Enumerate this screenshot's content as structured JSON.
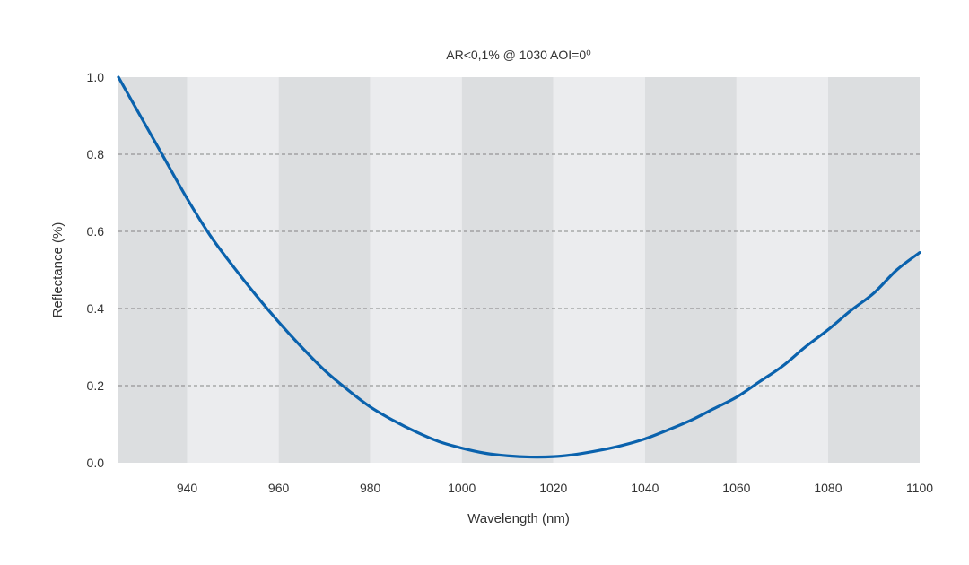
{
  "chart_data": {
    "type": "line",
    "title": "AR<0,1% @ 1030 AOI=0⁰",
    "xlabel": "Wavelength (nm)",
    "ylabel": "Reflectance (%)",
    "xlim": [
      925,
      1100
    ],
    "ylim": [
      0,
      1.0
    ],
    "x_ticks": [
      940,
      960,
      980,
      1000,
      1020,
      1040,
      1060,
      1080,
      1100
    ],
    "x_tick_labels": [
      "940",
      "960",
      "980",
      "1000",
      "1020",
      "1040",
      "1060",
      "1080",
      "1100"
    ],
    "y_ticks": [
      0,
      0.2,
      0.4,
      0.6,
      0.8,
      1.0
    ],
    "y_tick_labels": [
      "0.0",
      "0.2",
      "0.4",
      "0.6",
      "0.8",
      "1.0"
    ],
    "grid": "horizontal-dashed",
    "background_bands": [
      {
        "from": 925,
        "to": 940,
        "shade": "dark"
      },
      {
        "from": 940,
        "to": 960,
        "shade": "light"
      },
      {
        "from": 960,
        "to": 980,
        "shade": "dark"
      },
      {
        "from": 980,
        "to": 1000,
        "shade": "light"
      },
      {
        "from": 1000,
        "to": 1020,
        "shade": "dark"
      },
      {
        "from": 1020,
        "to": 1040,
        "shade": "light"
      },
      {
        "from": 1040,
        "to": 1060,
        "shade": "dark"
      },
      {
        "from": 1060,
        "to": 1080,
        "shade": "light"
      },
      {
        "from": 1080,
        "to": 1100,
        "shade": "dark"
      }
    ],
    "colors": {
      "line": "#0a62ad",
      "band_dark": "#dcdee0",
      "band_light": "#ebecee",
      "grid": "#666666"
    },
    "series": [
      {
        "x": [
          925,
          930,
          935,
          940,
          945,
          950,
          955,
          960,
          965,
          970,
          975,
          980,
          985,
          990,
          995,
          1000,
          1005,
          1010,
          1015,
          1020,
          1025,
          1030,
          1035,
          1040,
          1045,
          1050,
          1055,
          1060,
          1065,
          1070,
          1075,
          1080,
          1085,
          1090,
          1095,
          1100
        ],
        "y": [
          1.0,
          0.895,
          0.79,
          0.685,
          0.59,
          0.51,
          0.435,
          0.365,
          0.3,
          0.24,
          0.19,
          0.145,
          0.11,
          0.08,
          0.055,
          0.038,
          0.025,
          0.018,
          0.015,
          0.016,
          0.022,
          0.032,
          0.045,
          0.062,
          0.085,
          0.11,
          0.14,
          0.17,
          0.21,
          0.25,
          0.3,
          0.345,
          0.395,
          0.44,
          0.5,
          0.545
        ]
      }
    ]
  }
}
